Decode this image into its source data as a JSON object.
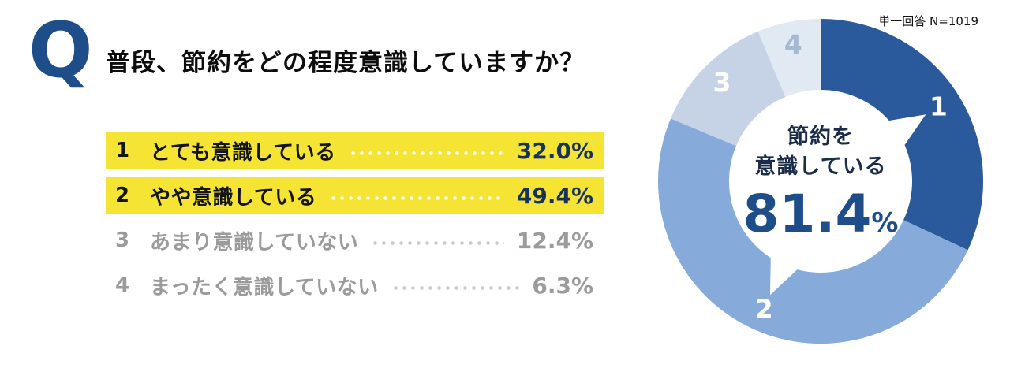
{
  "meta": {
    "note": "単一回答 N=1019"
  },
  "question": {
    "q_mark": "Q",
    "title": "普段、節約をどの程度意識していますか？"
  },
  "options": [
    {
      "rank": "1",
      "label": "とても意識している",
      "value": "32.0%",
      "highlighted": true
    },
    {
      "rank": "2",
      "label": "やや意識している",
      "value": "49.4%",
      "highlighted": true
    },
    {
      "rank": "3",
      "label": "あまり意識していない",
      "value": "12.4%",
      "highlighted": false
    },
    {
      "rank": "4",
      "label": "まったく意識していない",
      "value": "6.3%",
      "highlighted": false
    }
  ],
  "chart_data": {
    "type": "pie",
    "donut": true,
    "title": "普段、節約をどの程度意識していますか？",
    "note": "単一回答 N=1019",
    "categories": [
      "とても意識している",
      "やや意識している",
      "あまり意識していない",
      "まったく意識していない"
    ],
    "values": [
      32.0,
      49.4,
      12.4,
      6.3
    ],
    "values_display": [
      "32.0%",
      "49.4%",
      "12.4%",
      "6.3%"
    ],
    "segment_labels": [
      "1",
      "2",
      "3",
      "4"
    ],
    "colors": [
      "#2a5a9b",
      "#86abdb",
      "#c6d3e6",
      "#e1e9f3"
    ],
    "segment_label_colors": [
      "#ffffff",
      "#ffffff",
      "#ffffff",
      "#a4b9d2"
    ],
    "start_angle_deg": 0,
    "direction": "clockwise",
    "callout_segments": [
      0,
      1
    ],
    "center_callout": {
      "label_line1": "節約を",
      "label_line2": "意識している",
      "value": "81.4",
      "unit": "%"
    }
  },
  "colors": {
    "accent_blue": "#1d4e89",
    "highlight_yellow": "#f6e435",
    "muted_gray": "#9b9b9b"
  }
}
